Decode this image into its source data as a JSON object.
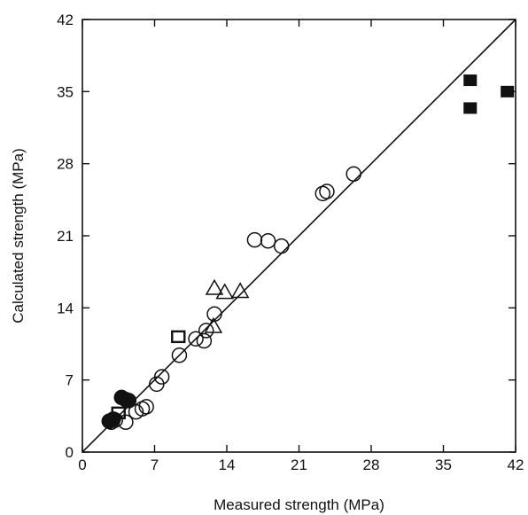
{
  "chart_data": {
    "type": "scatter",
    "title": "",
    "xlabel": "Measured strength (MPa)",
    "ylabel": "Calculated strength (MPa)",
    "xlim": [
      0,
      42
    ],
    "ylim": [
      0,
      42
    ],
    "xticks": [
      0,
      7,
      14,
      21,
      28,
      35,
      42
    ],
    "yticks": [
      0,
      7,
      14,
      21,
      28,
      35,
      42
    ],
    "grid": false,
    "legend": "none",
    "reference_line": {
      "from": [
        0,
        0
      ],
      "to": [
        42,
        42
      ]
    },
    "series": [
      {
        "marker": "open-circle",
        "points": [
          [
            2.8,
            2.9
          ],
          [
            3.2,
            3.1
          ],
          [
            4.2,
            2.9
          ],
          [
            5.2,
            3.9
          ],
          [
            5.8,
            4.2
          ],
          [
            6.2,
            4.4
          ],
          [
            7.2,
            6.6
          ],
          [
            7.7,
            7.3
          ],
          [
            9.4,
            9.4
          ],
          [
            11.0,
            11.0
          ],
          [
            11.8,
            10.8
          ],
          [
            12.0,
            11.8
          ],
          [
            12.8,
            13.4
          ],
          [
            16.7,
            20.6
          ],
          [
            18.0,
            20.5
          ],
          [
            19.3,
            20.0
          ],
          [
            23.3,
            25.1
          ],
          [
            23.7,
            25.3
          ],
          [
            26.3,
            27.0
          ]
        ]
      },
      {
        "marker": "filled-circle",
        "points": [
          [
            2.6,
            3.0
          ],
          [
            3.0,
            3.2
          ],
          [
            3.8,
            5.3
          ],
          [
            4.2,
            5.1
          ],
          [
            4.5,
            5.0
          ]
        ]
      },
      {
        "marker": "open-triangle",
        "points": [
          [
            12.7,
            12.2
          ],
          [
            12.8,
            15.9
          ],
          [
            13.8,
            15.5
          ],
          [
            15.3,
            15.6
          ]
        ]
      },
      {
        "marker": "open-square",
        "points": [
          [
            9.3,
            11.2
          ],
          [
            3.5,
            3.8
          ]
        ]
      },
      {
        "marker": "filled-square",
        "points": [
          [
            37.6,
            36.1
          ],
          [
            37.6,
            33.4
          ],
          [
            41.2,
            35.0
          ]
        ]
      }
    ],
    "colors": {
      "marks": "#111111",
      "background": "#ffffff"
    }
  }
}
